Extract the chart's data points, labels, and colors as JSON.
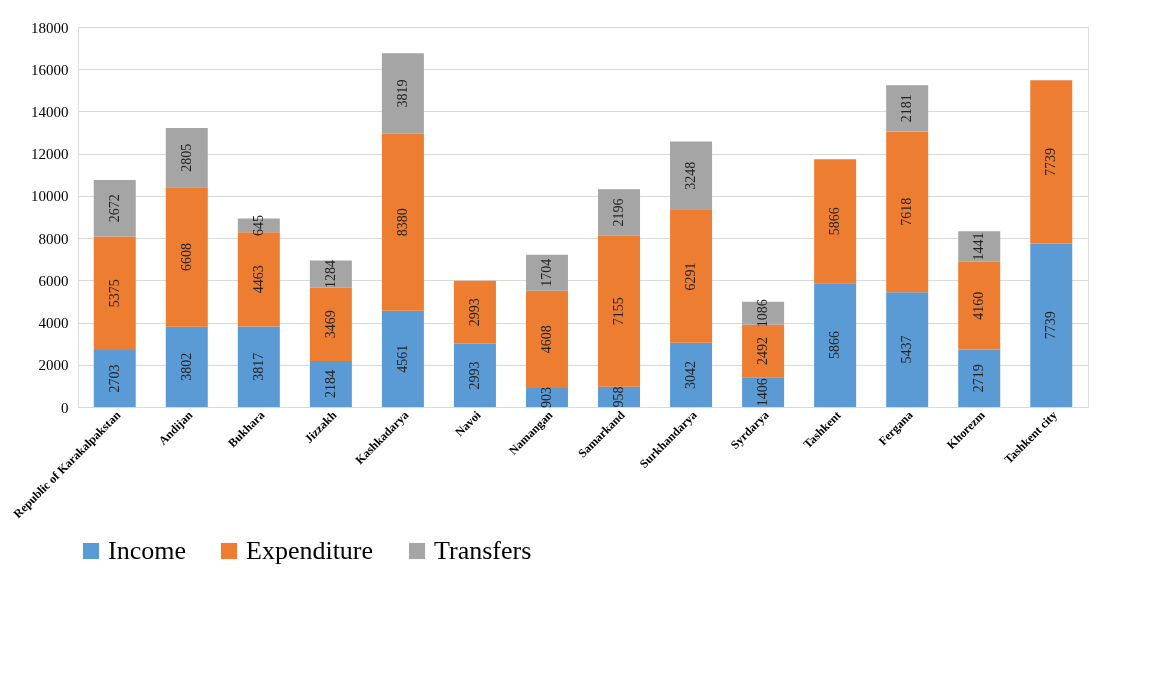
{
  "chart_data": {
    "type": "bar",
    "stacked": true,
    "data_labels": true,
    "grid": "y",
    "legend": "bottom",
    "categories": [
      "Republic of Karakalpakstan",
      "Andijan",
      "Bukhara",
      "Jizzakh",
      "Kashkadarya",
      "Navoi",
      "Namangan",
      "Samarkand",
      "Surkhandarya",
      "Syrdarya",
      "Tashkent",
      "Fergana",
      "Khorezm",
      "Tashkent city"
    ],
    "ylim": [
      0,
      18000
    ],
    "yticks": [
      0,
      2000,
      4000,
      6000,
      8000,
      10000,
      12000,
      14000,
      16000,
      18000
    ],
    "series": [
      {
        "name": "Income",
        "color": "#5b9bd5",
        "values": [
          2703,
          3802,
          3817,
          2184,
          4561,
          2993,
          903,
          958,
          3042,
          1406,
          5866,
          5437,
          2719,
          7739
        ]
      },
      {
        "name": "Expenditure",
        "color": "#ed7d31",
        "values": [
          5375,
          6608,
          4463,
          3469,
          8380,
          2993,
          4608,
          7155,
          6291,
          2492,
          5866,
          7618,
          4160,
          7739
        ]
      },
      {
        "name": "Transfers",
        "color": "#a5a5a5",
        "values": [
          2672,
          2805,
          645,
          1284,
          3819,
          null,
          1704,
          2196,
          3248,
          1086,
          null,
          2181,
          1441,
          null
        ]
      }
    ]
  }
}
